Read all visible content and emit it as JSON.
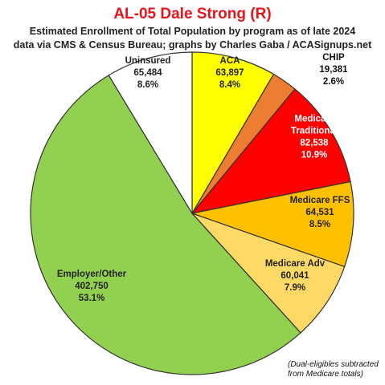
{
  "title": "AL-05 Dale Strong (R)",
  "subtitle_line1": "Estimated Enrollment of Total Population by program as of late 2024",
  "subtitle_line2": "data via CMS & Census Bureau; graphs by Charles Gaba / ACASignups.net",
  "footnote_line1": "(Dual-eligibles subtracted",
  "footnote_line2": "from Medicare totals)",
  "chart_data": {
    "type": "pie",
    "slices": [
      {
        "lines": [
          "ACA"
        ],
        "value": 63897,
        "value_label": "63,897",
        "percent": "8.4%",
        "color": "#ffff00",
        "text_color": "#222222"
      },
      {
        "lines": [
          "CHIP"
        ],
        "value": 19381,
        "value_label": "19,381",
        "percent": "2.6%",
        "color": "#ed7d31",
        "text_color": "#222222"
      },
      {
        "lines": [
          "Medicaid",
          "Traditional"
        ],
        "value": 82538,
        "value_label": "82,538",
        "percent": "10.9%",
        "color": "#ff0000",
        "text_color": "#ffffff"
      },
      {
        "lines": [
          "Medicare FFS"
        ],
        "value": 64531,
        "value_label": "64,531",
        "percent": "8.5%",
        "color": "#ffc000",
        "text_color": "#222222"
      },
      {
        "lines": [
          "Medicare Adv"
        ],
        "value": 60041,
        "value_label": "60,041",
        "percent": "7.9%",
        "color": "#ffd966",
        "text_color": "#222222"
      },
      {
        "lines": [
          "Employer/Other"
        ],
        "value": 402750,
        "value_label": "402,750",
        "percent": "53.1%",
        "color": "#92d050",
        "text_color": "#222222"
      },
      {
        "lines": [
          "Uninsured"
        ],
        "value": 65484,
        "value_label": "65,484",
        "percent": "8.6%",
        "color": "#ffffff",
        "text_color": "#222222"
      }
    ]
  }
}
